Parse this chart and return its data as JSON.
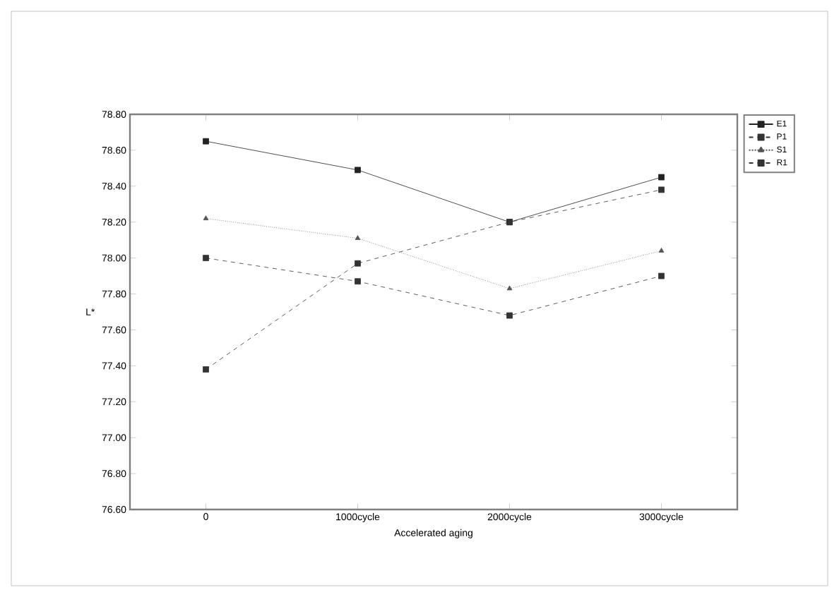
{
  "chart_data": {
    "type": "line",
    "xlabel": "Accelerated aging",
    "ylabel": "L*",
    "categories": [
      "0",
      "1000cycle",
      "2000cycle",
      "3000cycle"
    ],
    "series": [
      {
        "name": "E1",
        "color": "#222222",
        "values": [
          78.65,
          78.49,
          78.2,
          78.45
        ],
        "line_style": "solid",
        "marker": "square"
      },
      {
        "name": "P1",
        "color": "#333333",
        "values": [
          78.0,
          77.87,
          77.68,
          77.9
        ],
        "line_style": "dashed",
        "marker": "square"
      },
      {
        "name": "S1",
        "color": "#555555",
        "values": [
          78.22,
          78.11,
          77.83,
          78.04
        ],
        "line_style": "dotted",
        "marker": "triangle"
      },
      {
        "name": "R1",
        "color": "#333333",
        "values": [
          77.38,
          77.97,
          78.2,
          78.38
        ],
        "line_style": "dashed",
        "marker": "square"
      }
    ],
    "ylim": [
      76.6,
      78.8
    ],
    "yticks": [
      {
        "value": 76.6,
        "label": "76.60"
      },
      {
        "value": 76.8,
        "label": "76.80"
      },
      {
        "value": 77.0,
        "label": "77.00"
      },
      {
        "value": 77.2,
        "label": "77.20"
      },
      {
        "value": 77.4,
        "label": "77.40"
      },
      {
        "value": 77.6,
        "label": "77.60"
      },
      {
        "value": 77.8,
        "label": "77.80"
      },
      {
        "value": 78.0,
        "label": "78.00"
      },
      {
        "value": 78.2,
        "label": "78.20"
      },
      {
        "value": 78.4,
        "label": "78.40"
      },
      {
        "value": 78.6,
        "label": "78.60"
      },
      {
        "value": 78.8,
        "label": "78.80"
      }
    ],
    "legend": "top right",
    "grid": false
  }
}
